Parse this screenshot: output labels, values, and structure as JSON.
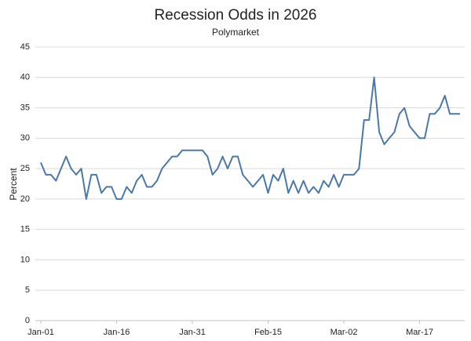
{
  "chart_data": {
    "type": "line",
    "title": "Recession Odds in 2026",
    "subtitle": "Polymarket",
    "y_label": "Percent",
    "categories": [
      "Jan-01",
      null,
      null,
      null,
      null,
      null,
      null,
      null,
      null,
      null,
      null,
      null,
      null,
      null,
      null,
      "Jan-16",
      null,
      null,
      null,
      null,
      null,
      null,
      null,
      null,
      null,
      null,
      null,
      null,
      null,
      null,
      "Jan-31",
      null,
      null,
      null,
      null,
      null,
      null,
      null,
      null,
      null,
      null,
      null,
      null,
      null,
      null,
      "Feb-15",
      null,
      null,
      null,
      null,
      null,
      null,
      null,
      null,
      null,
      null,
      null,
      null,
      null,
      null,
      "Mar-02",
      null,
      null,
      null,
      null,
      null,
      null,
      null,
      null,
      null,
      null,
      null,
      null,
      null,
      null,
      "Mar-17",
      null,
      null,
      null,
      null,
      null,
      null,
      null,
      null
    ],
    "values": [
      26,
      24,
      24,
      23,
      25,
      27,
      25,
      24,
      25,
      20,
      24,
      24,
      21,
      22,
      22,
      20,
      20,
      22,
      21,
      23,
      24,
      22,
      22,
      23,
      25,
      26,
      27,
      27,
      28,
      28,
      28,
      28,
      28,
      27,
      24,
      25,
      27,
      25,
      27,
      27,
      24,
      23,
      22,
      23,
      24,
      21,
      24,
      23,
      25,
      21,
      23,
      21,
      23,
      21,
      22,
      21,
      23,
      22,
      24,
      22,
      24,
      24,
      24,
      25,
      33,
      33,
      40,
      31,
      29,
      30,
      31,
      34,
      35,
      32,
      31,
      30,
      30,
      34,
      34,
      35,
      37,
      34,
      34,
      34
    ],
    "color": "#4a78a8",
    "ylim": [
      0,
      45
    ],
    "yticks": [
      0,
      5,
      10,
      15,
      20,
      25,
      30,
      35,
      40,
      45
    ],
    "grid": true
  }
}
